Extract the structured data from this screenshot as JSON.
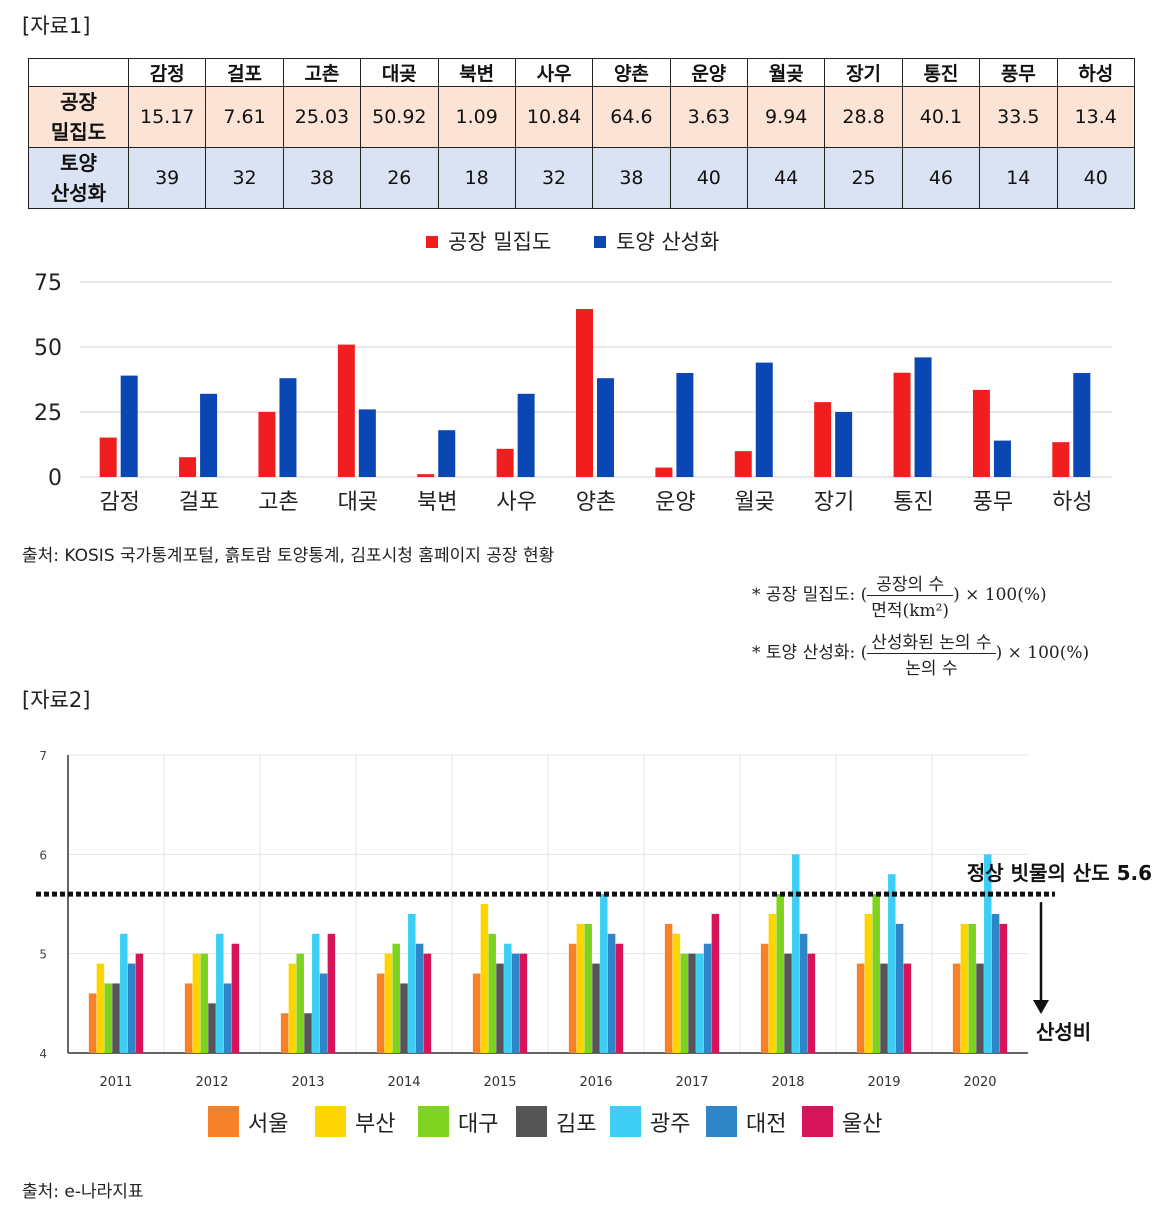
{
  "section1_label": "[자료1]",
  "section2_label": "[자료2]",
  "table": {
    "columns": [
      "감정",
      "걸포",
      "고촌",
      "대곶",
      "북변",
      "사우",
      "양촌",
      "운양",
      "월곶",
      "장기",
      "통진",
      "풍무",
      "하성"
    ],
    "rows": [
      {
        "label_line1": "공장",
        "label_line2": "밀집도",
        "values": [
          "15.17",
          "7.61",
          "25.03",
          "50.92",
          "1.09",
          "10.84",
          "64.6",
          "3.63",
          "9.94",
          "28.8",
          "40.1",
          "33.5",
          "13.4"
        ]
      },
      {
        "label_line1": "토양",
        "label_line2": "산성화",
        "values": [
          "39",
          "32",
          "38",
          "26",
          "18",
          "32",
          "38",
          "40",
          "44",
          "25",
          "46",
          "14",
          "40"
        ]
      }
    ]
  },
  "source1": "출처: KOSIS 국가통계포털, 흙토람 토양통계, 김포시청 홈페이지 공장 현황",
  "formula1": {
    "label": "* 공장 밀집도: (",
    "num": "공장의 수",
    "den": "면적(km²)",
    "tail": ") × 100(%)"
  },
  "formula2": {
    "label": "* 토양 산성화: (",
    "num": "산성화된 논의 수",
    "den": "논의 수",
    "tail": ") × 100(%)"
  },
  "source2": "출처: e-나라지표",
  "colors": {
    "red": "#f01e1e",
    "blue": "#0a46b4"
  },
  "chart_data": [
    {
      "type": "bar",
      "categories": [
        "감정",
        "걸포",
        "고촌",
        "대곶",
        "북변",
        "사우",
        "양촌",
        "운양",
        "월곶",
        "장기",
        "통진",
        "풍무",
        "하성"
      ],
      "series": [
        {
          "name": "공장 밀집도",
          "values": [
            15.17,
            7.61,
            25.03,
            50.92,
            1.09,
            10.84,
            64.6,
            3.63,
            9.94,
            28.8,
            40.1,
            33.5,
            13.4
          ],
          "color": "#f01e1e"
        },
        {
          "name": "토양 산성화",
          "values": [
            39,
            32,
            38,
            26,
            18,
            32,
            38,
            40,
            44,
            25,
            46,
            14,
            40
          ],
          "color": "#0a46b4"
        }
      ],
      "yticks": [
        "0",
        "25",
        "50",
        "75"
      ],
      "ylim": [
        0,
        75
      ],
      "grid": true,
      "legend": "top-center"
    },
    {
      "type": "bar",
      "categories": [
        "2011",
        "2012",
        "2013",
        "2014",
        "2015",
        "2016",
        "2017",
        "2018",
        "2019",
        "2020"
      ],
      "series": [
        {
          "name": "서울",
          "color": "#f5822a",
          "values": [
            4.6,
            4.7,
            4.4,
            4.8,
            4.8,
            5.1,
            5.3,
            5.1,
            4.9,
            4.9
          ]
        },
        {
          "name": "부산",
          "color": "#ffd500",
          "values": [
            4.9,
            5.0,
            4.9,
            5.0,
            5.5,
            5.3,
            5.2,
            5.4,
            5.4,
            5.3
          ]
        },
        {
          "name": "대구",
          "color": "#7ed321",
          "values": [
            4.7,
            5.0,
            5.0,
            5.1,
            5.2,
            5.3,
            5.0,
            5.6,
            5.6,
            5.3
          ]
        },
        {
          "name": "김포",
          "color": "#555555",
          "values": [
            4.7,
            4.5,
            4.4,
            4.7,
            4.9,
            4.9,
            5.0,
            5.0,
            4.9,
            4.9
          ]
        },
        {
          "name": "광주",
          "color": "#3ecdf5",
          "values": [
            5.2,
            5.2,
            5.2,
            5.4,
            5.1,
            5.6,
            5.0,
            6.0,
            5.8,
            6.0
          ]
        },
        {
          "name": "대전",
          "color": "#2e86c9",
          "values": [
            4.9,
            4.7,
            4.8,
            5.1,
            5.0,
            5.2,
            5.1,
            5.2,
            5.3,
            5.4
          ]
        },
        {
          "name": "울산",
          "color": "#d6145a",
          "values": [
            5.0,
            5.1,
            5.2,
            5.0,
            5.0,
            5.1,
            5.4,
            5.0,
            4.9,
            5.3
          ]
        }
      ],
      "yticks": [
        "4",
        "5",
        "6",
        "7"
      ],
      "ylim": [
        4,
        7
      ],
      "reference_line": {
        "value": 5.6,
        "label": "정상 빗물의 산도 5.6"
      },
      "arrow_label": "산성비",
      "grid": true,
      "legend": "bottom-center"
    }
  ]
}
